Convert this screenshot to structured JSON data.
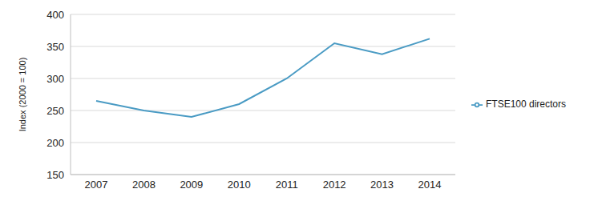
{
  "chart_data": {
    "type": "line",
    "y_label": "Index (2000 = 100)",
    "categories": [
      "2007",
      "2008",
      "2009",
      "2010",
      "2011",
      "2012",
      "2013",
      "2014"
    ],
    "series": [
      {
        "name": "FTSE100 directors",
        "color": "#4a9bc4",
        "values": [
          265,
          250,
          240,
          260,
          300,
          355,
          338,
          362
        ]
      }
    ],
    "ylim": [
      150,
      400
    ],
    "yticks": [
      150,
      200,
      250,
      300,
      350,
      400
    ],
    "grid": true,
    "legend": "right"
  }
}
